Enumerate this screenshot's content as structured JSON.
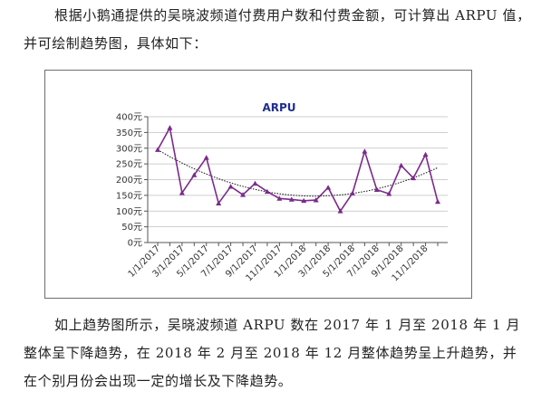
{
  "intro_text": "根据小鹅通提供的吴晓波频道付费用户数和付费金额，可计算出 ARPU 值，并可绘制趋势图，具体如下：",
  "outro_text": "如上趋势图所示，吴晓波频道 ARPU 数在 2017 年 1 月至 2018 年 1 月整体呈下降趋势，在 2018 年 2 月至 2018 年 12 月整体趋势呈上升趋势，并在个别月份会出现一定的增长及下降趋势。",
  "colors": {
    "series": "#7b2a8c",
    "trend": "#111111",
    "grid": "#bfbfbf",
    "title": "#1f2f8f"
  },
  "chart_data": {
    "type": "line",
    "title": "ARPU",
    "xlabel": "",
    "ylabel": "",
    "ylim": [
      0,
      400
    ],
    "y_ticks": [
      "0元",
      "50元",
      "100元",
      "150元",
      "200元",
      "250元",
      "300元",
      "350元",
      "400元"
    ],
    "x_tick_labels": [
      "1/1/2017",
      "3/1/2017",
      "5/1/2017",
      "7/1/2017",
      "9/1/2017",
      "11/1/2017",
      "1/1/2018",
      "3/1/2018",
      "5/1/2018",
      "7/1/2018",
      "9/1/2018",
      "11/1/2018"
    ],
    "grid": "horizontal",
    "legend": "none",
    "series": [
      {
        "x": [
          "2017-01",
          "2017-02",
          "2017-03",
          "2017-04",
          "2017-05",
          "2017-06",
          "2017-07",
          "2017-08",
          "2017-09",
          "2017-10",
          "2017-11",
          "2017-12",
          "2018-01",
          "2018-02",
          "2018-03",
          "2018-04",
          "2018-05",
          "2018-06",
          "2018-07",
          "2018-08",
          "2018-09",
          "2018-10",
          "2018-11",
          "2018-12"
        ],
        "values": [
          295,
          365,
          158,
          215,
          270,
          125,
          178,
          152,
          188,
          162,
          140,
          137,
          133,
          135,
          175,
          100,
          157,
          290,
          168,
          155,
          245,
          205,
          280,
          130
        ]
      }
    ],
    "trendline": {
      "type": "polynomial",
      "from": 295,
      "minimum": 148,
      "to": 238
    }
  }
}
